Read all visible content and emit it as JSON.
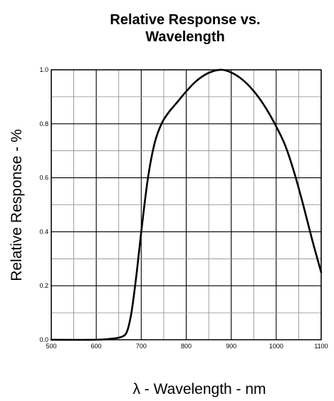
{
  "chart_data": {
    "type": "line",
    "title_lines": [
      "Relative Response vs.",
      "Wavelength"
    ],
    "xlabel": "λ - Wavelength - nm",
    "ylabel": "Relative Response - %",
    "xlim": [
      500,
      1100
    ],
    "ylim": [
      0.0,
      1.0
    ],
    "x_ticks": [
      {
        "value": 500,
        "label": "500"
      },
      {
        "value": 600,
        "label": "600"
      },
      {
        "value": 700,
        "label": "700"
      },
      {
        "value": 800,
        "label": "800"
      },
      {
        "value": 900,
        "label": "900"
      },
      {
        "value": 1000,
        "label": "1000"
      },
      {
        "value": 1100,
        "label": "1100"
      }
    ],
    "y_ticks": [
      {
        "value": 0.0,
        "label": "0.0"
      },
      {
        "value": 0.2,
        "label": "0.2"
      },
      {
        "value": 0.4,
        "label": "0.4"
      },
      {
        "value": 0.6,
        "label": "0.6"
      },
      {
        "value": 0.8,
        "label": "0.8"
      },
      {
        "value": 1.0,
        "label": "1.0"
      }
    ],
    "grid": true,
    "series": [
      {
        "color": "#000000",
        "x": [
          500,
          600,
          640,
          655,
          665,
          672,
          680,
          690,
          700,
          715,
          730,
          745,
          760,
          780,
          800,
          820,
          840,
          860,
          880,
          900,
          920,
          940,
          960,
          980,
          1000,
          1020,
          1040,
          1060,
          1080,
          1100
        ],
        "y": [
          0.0,
          0.0,
          0.005,
          0.01,
          0.02,
          0.05,
          0.12,
          0.25,
          0.4,
          0.6,
          0.73,
          0.8,
          0.84,
          0.88,
          0.92,
          0.955,
          0.98,
          0.995,
          1.0,
          0.99,
          0.97,
          0.94,
          0.9,
          0.85,
          0.79,
          0.72,
          0.62,
          0.5,
          0.37,
          0.25
        ]
      }
    ]
  }
}
